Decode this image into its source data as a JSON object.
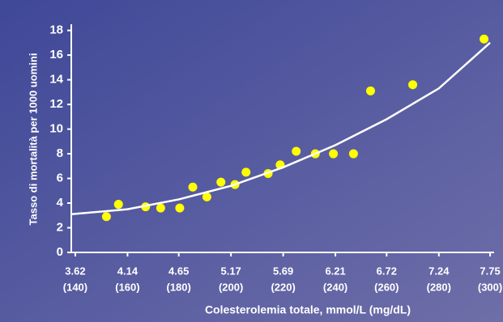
{
  "chart_data": {
    "type": "scatter",
    "xlabel": "Colesterolemia totale, mmol/L (mg/dL)",
    "ylabel": "Tasso di mortalità per 1000 uomini",
    "xlim": [
      3.58,
      7.79
    ],
    "ylim": [
      0,
      18.5
    ],
    "xticks": [
      {
        "value": 3.62,
        "label": [
          "3.62",
          "(140)"
        ]
      },
      {
        "value": 4.14,
        "label": [
          "4.14",
          "(160)"
        ]
      },
      {
        "value": 4.65,
        "label": [
          "4.65",
          "(180)"
        ]
      },
      {
        "value": 5.17,
        "label": [
          "5.17",
          "(200)"
        ]
      },
      {
        "value": 5.69,
        "label": [
          "5.69",
          "(220)"
        ]
      },
      {
        "value": 6.21,
        "label": [
          "6.21",
          "(240)"
        ]
      },
      {
        "value": 6.72,
        "label": [
          "6.72",
          "(260)"
        ]
      },
      {
        "value": 7.24,
        "label": [
          "7.24",
          "(280)"
        ]
      },
      {
        "value": 7.75,
        "label": [
          "7.75",
          "(300)"
        ]
      }
    ],
    "yticks": [
      0,
      2,
      4,
      6,
      8,
      10,
      12,
      14,
      16,
      18
    ],
    "series": [
      {
        "color": "#ffff00",
        "x": [
          3.93,
          4.05,
          4.32,
          4.47,
          4.66,
          4.79,
          4.93,
          5.07,
          5.21,
          5.32,
          5.54,
          5.66,
          5.82,
          6.01,
          6.19,
          6.39,
          6.56,
          6.98,
          7.69
        ],
        "values": [
          2.9,
          3.9,
          3.7,
          3.6,
          3.6,
          5.3,
          4.5,
          5.7,
          5.5,
          6.5,
          6.4,
          7.1,
          8.2,
          8.0,
          8.0,
          8.0,
          13.1,
          13.6,
          17.3
        ]
      },
      {
        "type": "line",
        "color": "#ffffff",
        "x": [
          3.58,
          4.14,
          4.65,
          5.17,
          5.69,
          6.21,
          6.72,
          7.24,
          7.75
        ],
        "values": [
          3.1,
          3.5,
          4.3,
          5.4,
          6.9,
          8.7,
          10.8,
          13.3,
          17.0
        ]
      }
    ]
  }
}
